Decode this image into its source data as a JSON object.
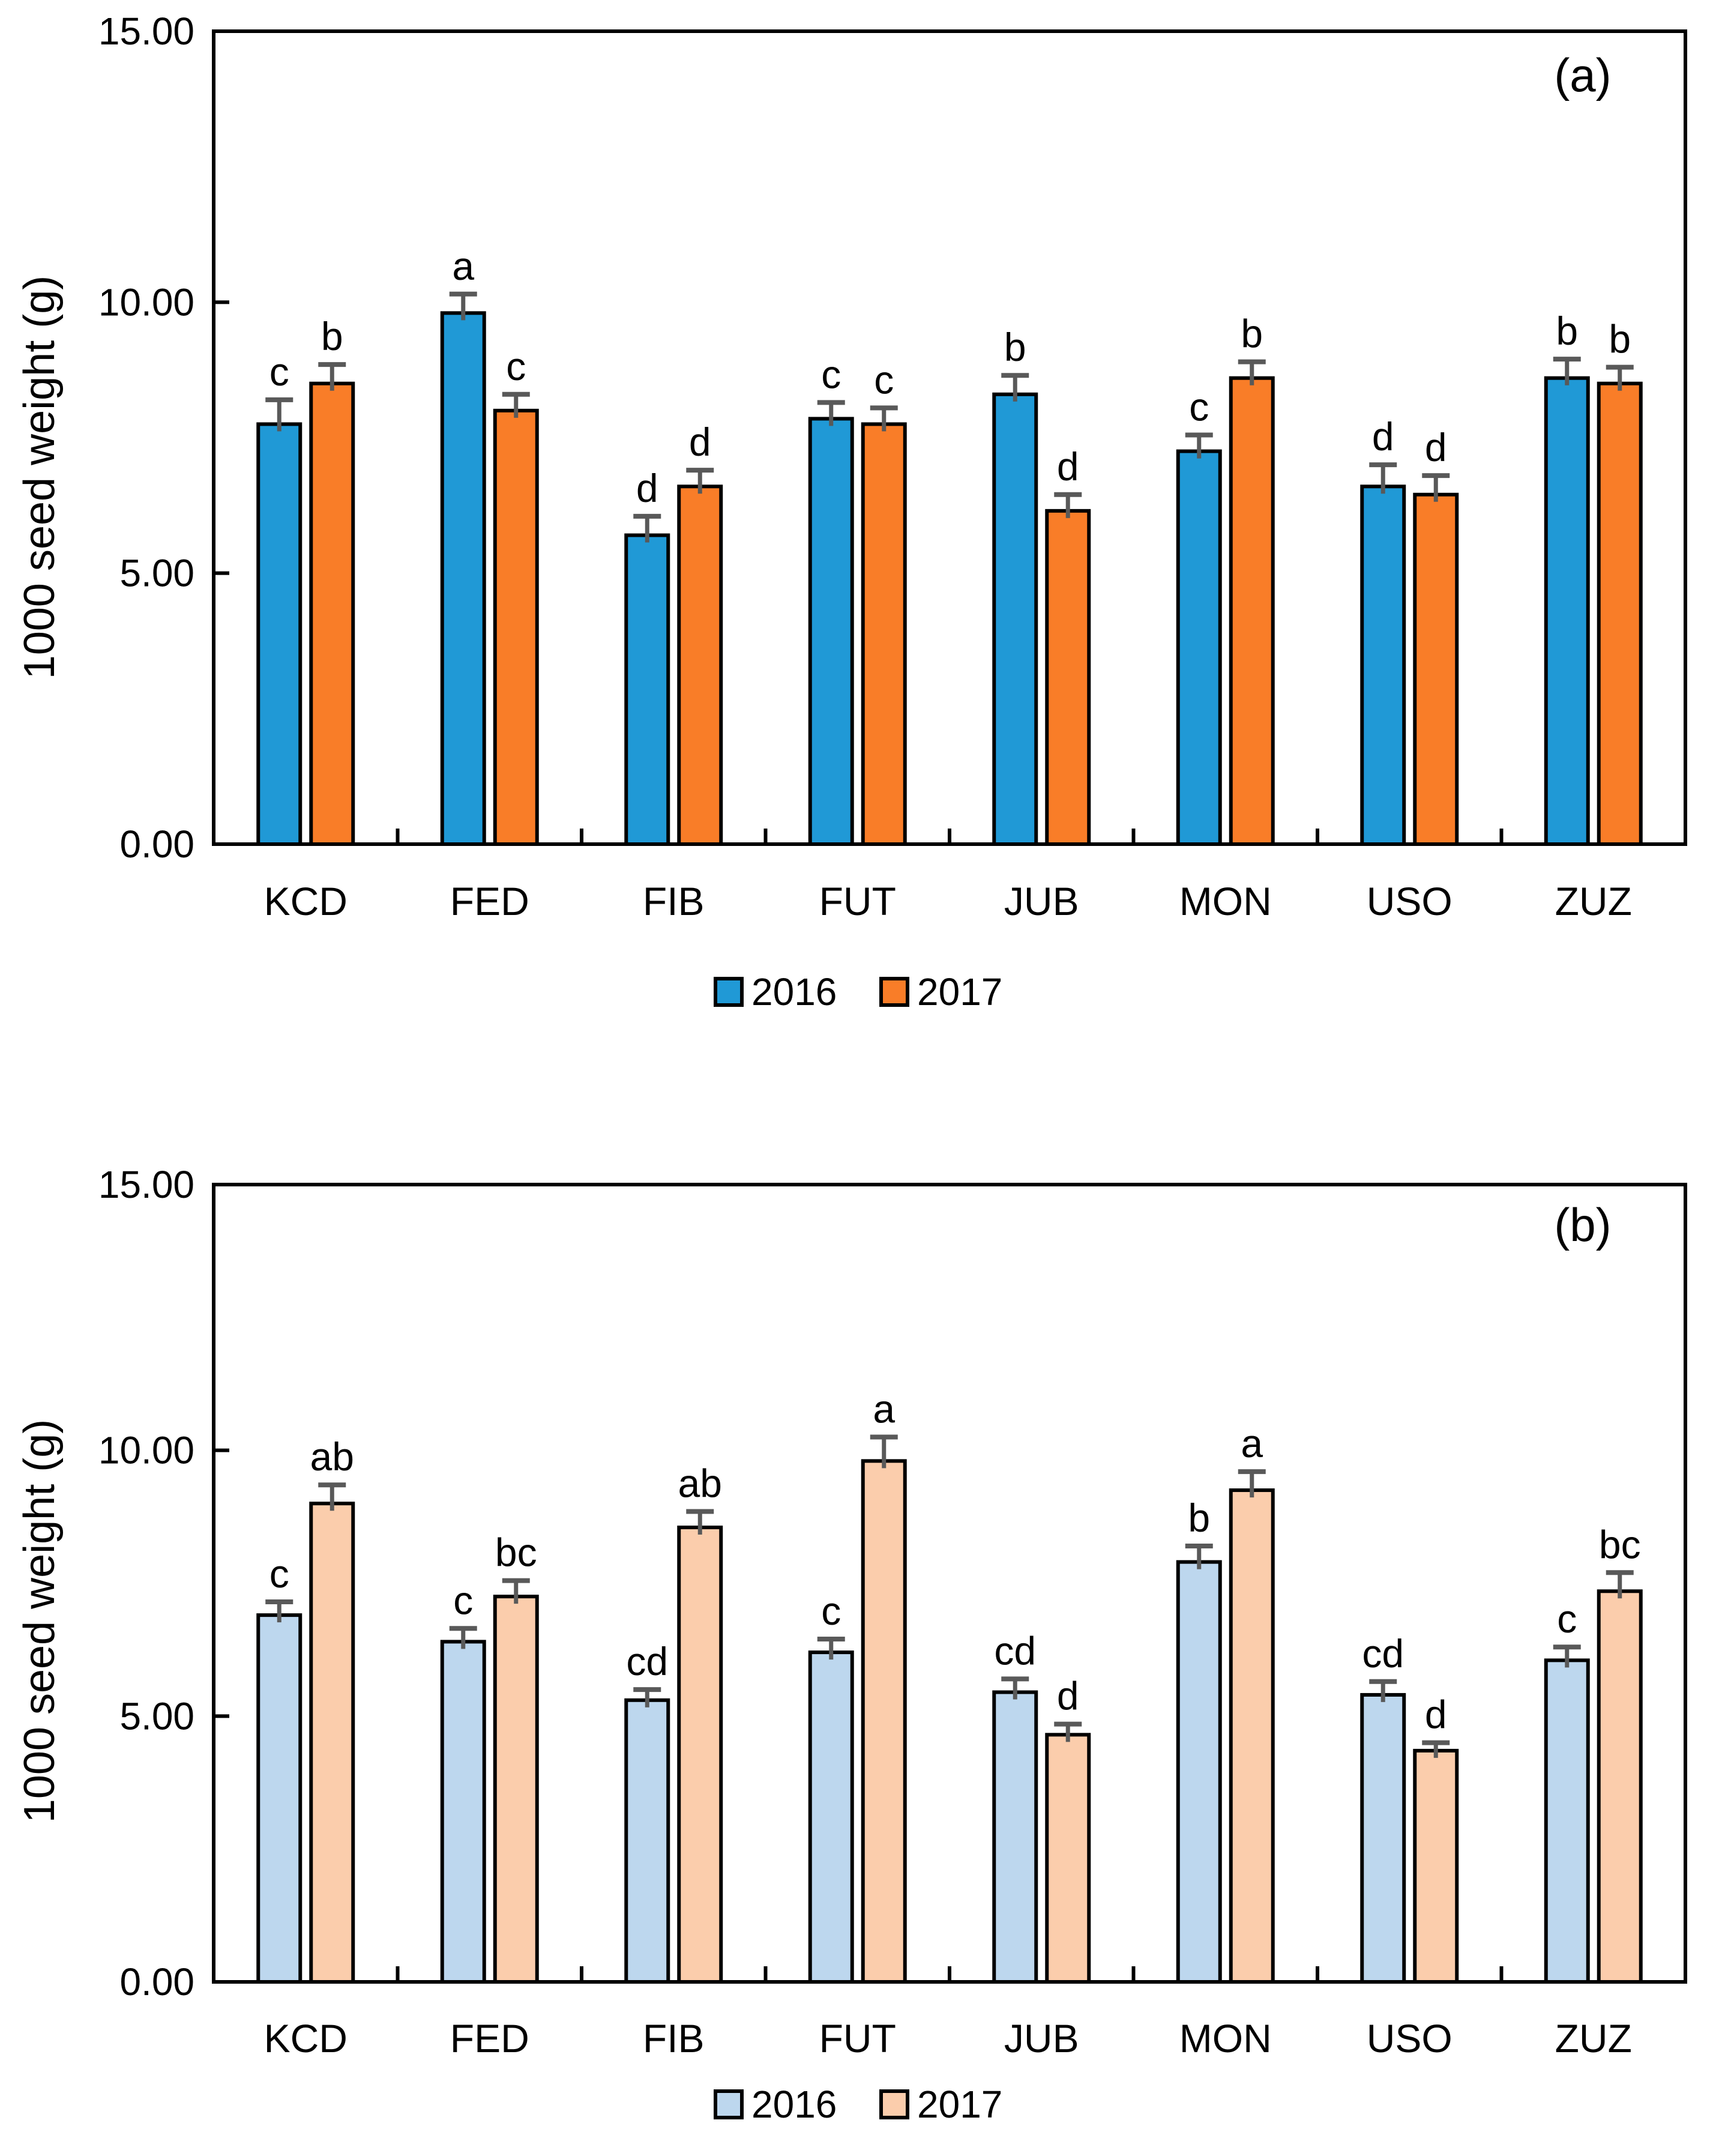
{
  "figure": {
    "background": "#ffffff",
    "description": "Two stacked grouped bar charts of 1000 seed weight (g) across eight genotypes for years 2016 and 2017, with error bars and significance letters"
  },
  "chart_data": [
    {
      "type": "bar",
      "panel_label": "(a)",
      "title": "",
      "xlabel": "",
      "ylabel": "1000 seed weight (g)",
      "ylim": [
        0,
        15
      ],
      "grid": false,
      "legend_position": "bottom",
      "axis_color": "#000000",
      "bar_border_color": "#000000",
      "error_bar_color": "#595959",
      "letter_color_default": "#000000",
      "yticks": [
        {
          "value": 0,
          "label": "0.00"
        },
        {
          "value": 5,
          "label": "5.00"
        },
        {
          "value": 10,
          "label": "10.00"
        },
        {
          "value": 15,
          "label": "15.00"
        }
      ],
      "categories": [
        "KCD",
        "FED",
        "FIB",
        "FUT",
        "JUB",
        "MON",
        "USO",
        "ZUZ"
      ],
      "series": [
        {
          "name": "2016",
          "color": "#2099D6",
          "values": [
            7.75,
            9.8,
            5.7,
            7.85,
            8.3,
            7.25,
            6.6,
            8.6
          ],
          "errors": [
            0.45,
            0.35,
            0.35,
            0.3,
            0.35,
            0.3,
            0.4,
            0.35
          ],
          "letters": [
            "c",
            "a",
            "d",
            "c",
            "b",
            "c",
            "d",
            "b"
          ]
        },
        {
          "name": "2017",
          "color": "#F97D28",
          "values": [
            8.5,
            8.0,
            6.6,
            7.75,
            6.15,
            8.6,
            6.45,
            8.5
          ],
          "errors": [
            0.35,
            0.3,
            0.3,
            0.3,
            0.3,
            0.3,
            0.35,
            0.3
          ],
          "letters": [
            "b",
            "c",
            "d",
            "c",
            "d",
            "b",
            "d",
            "b"
          ],
          "letter_colors": {
            "ZUZ": "#595959"
          }
        }
      ]
    },
    {
      "type": "bar",
      "panel_label": "(b)",
      "title": "",
      "xlabel": "",
      "ylabel": "1000 seed weight (g)",
      "ylim": [
        0,
        15
      ],
      "grid": false,
      "legend_position": "bottom",
      "axis_color": "#000000",
      "bar_border_color": "#000000",
      "error_bar_color": "#595959",
      "letter_color_default": "#000000",
      "yticks": [
        {
          "value": 0,
          "label": "0.00"
        },
        {
          "value": 5,
          "label": "5.00"
        },
        {
          "value": 10,
          "label": "10.00"
        },
        {
          "value": 15,
          "label": "15.00"
        }
      ],
      "categories": [
        "KCD",
        "FED",
        "FIB",
        "FUT",
        "JUB",
        "MON",
        "USO",
        "ZUZ"
      ],
      "series": [
        {
          "name": "2016",
          "color": "#BDD7EE",
          "values": [
            6.9,
            6.4,
            5.3,
            6.2,
            5.45,
            7.9,
            5.4,
            6.05
          ],
          "errors": [
            0.25,
            0.25,
            0.2,
            0.25,
            0.25,
            0.3,
            0.25,
            0.25
          ],
          "letters": [
            "c",
            "c",
            "cd",
            "c",
            "cd",
            "b",
            "cd",
            "c"
          ]
        },
        {
          "name": "2017",
          "color": "#FBCDAC",
          "values": [
            9.0,
            7.25,
            8.55,
            9.8,
            4.65,
            9.25,
            4.35,
            7.35
          ],
          "errors": [
            0.35,
            0.3,
            0.3,
            0.45,
            0.2,
            0.35,
            0.15,
            0.35
          ],
          "letters": [
            "ab",
            "bc",
            "ab",
            "a",
            "d",
            "a",
            "d",
            "bc"
          ]
        }
      ]
    }
  ]
}
